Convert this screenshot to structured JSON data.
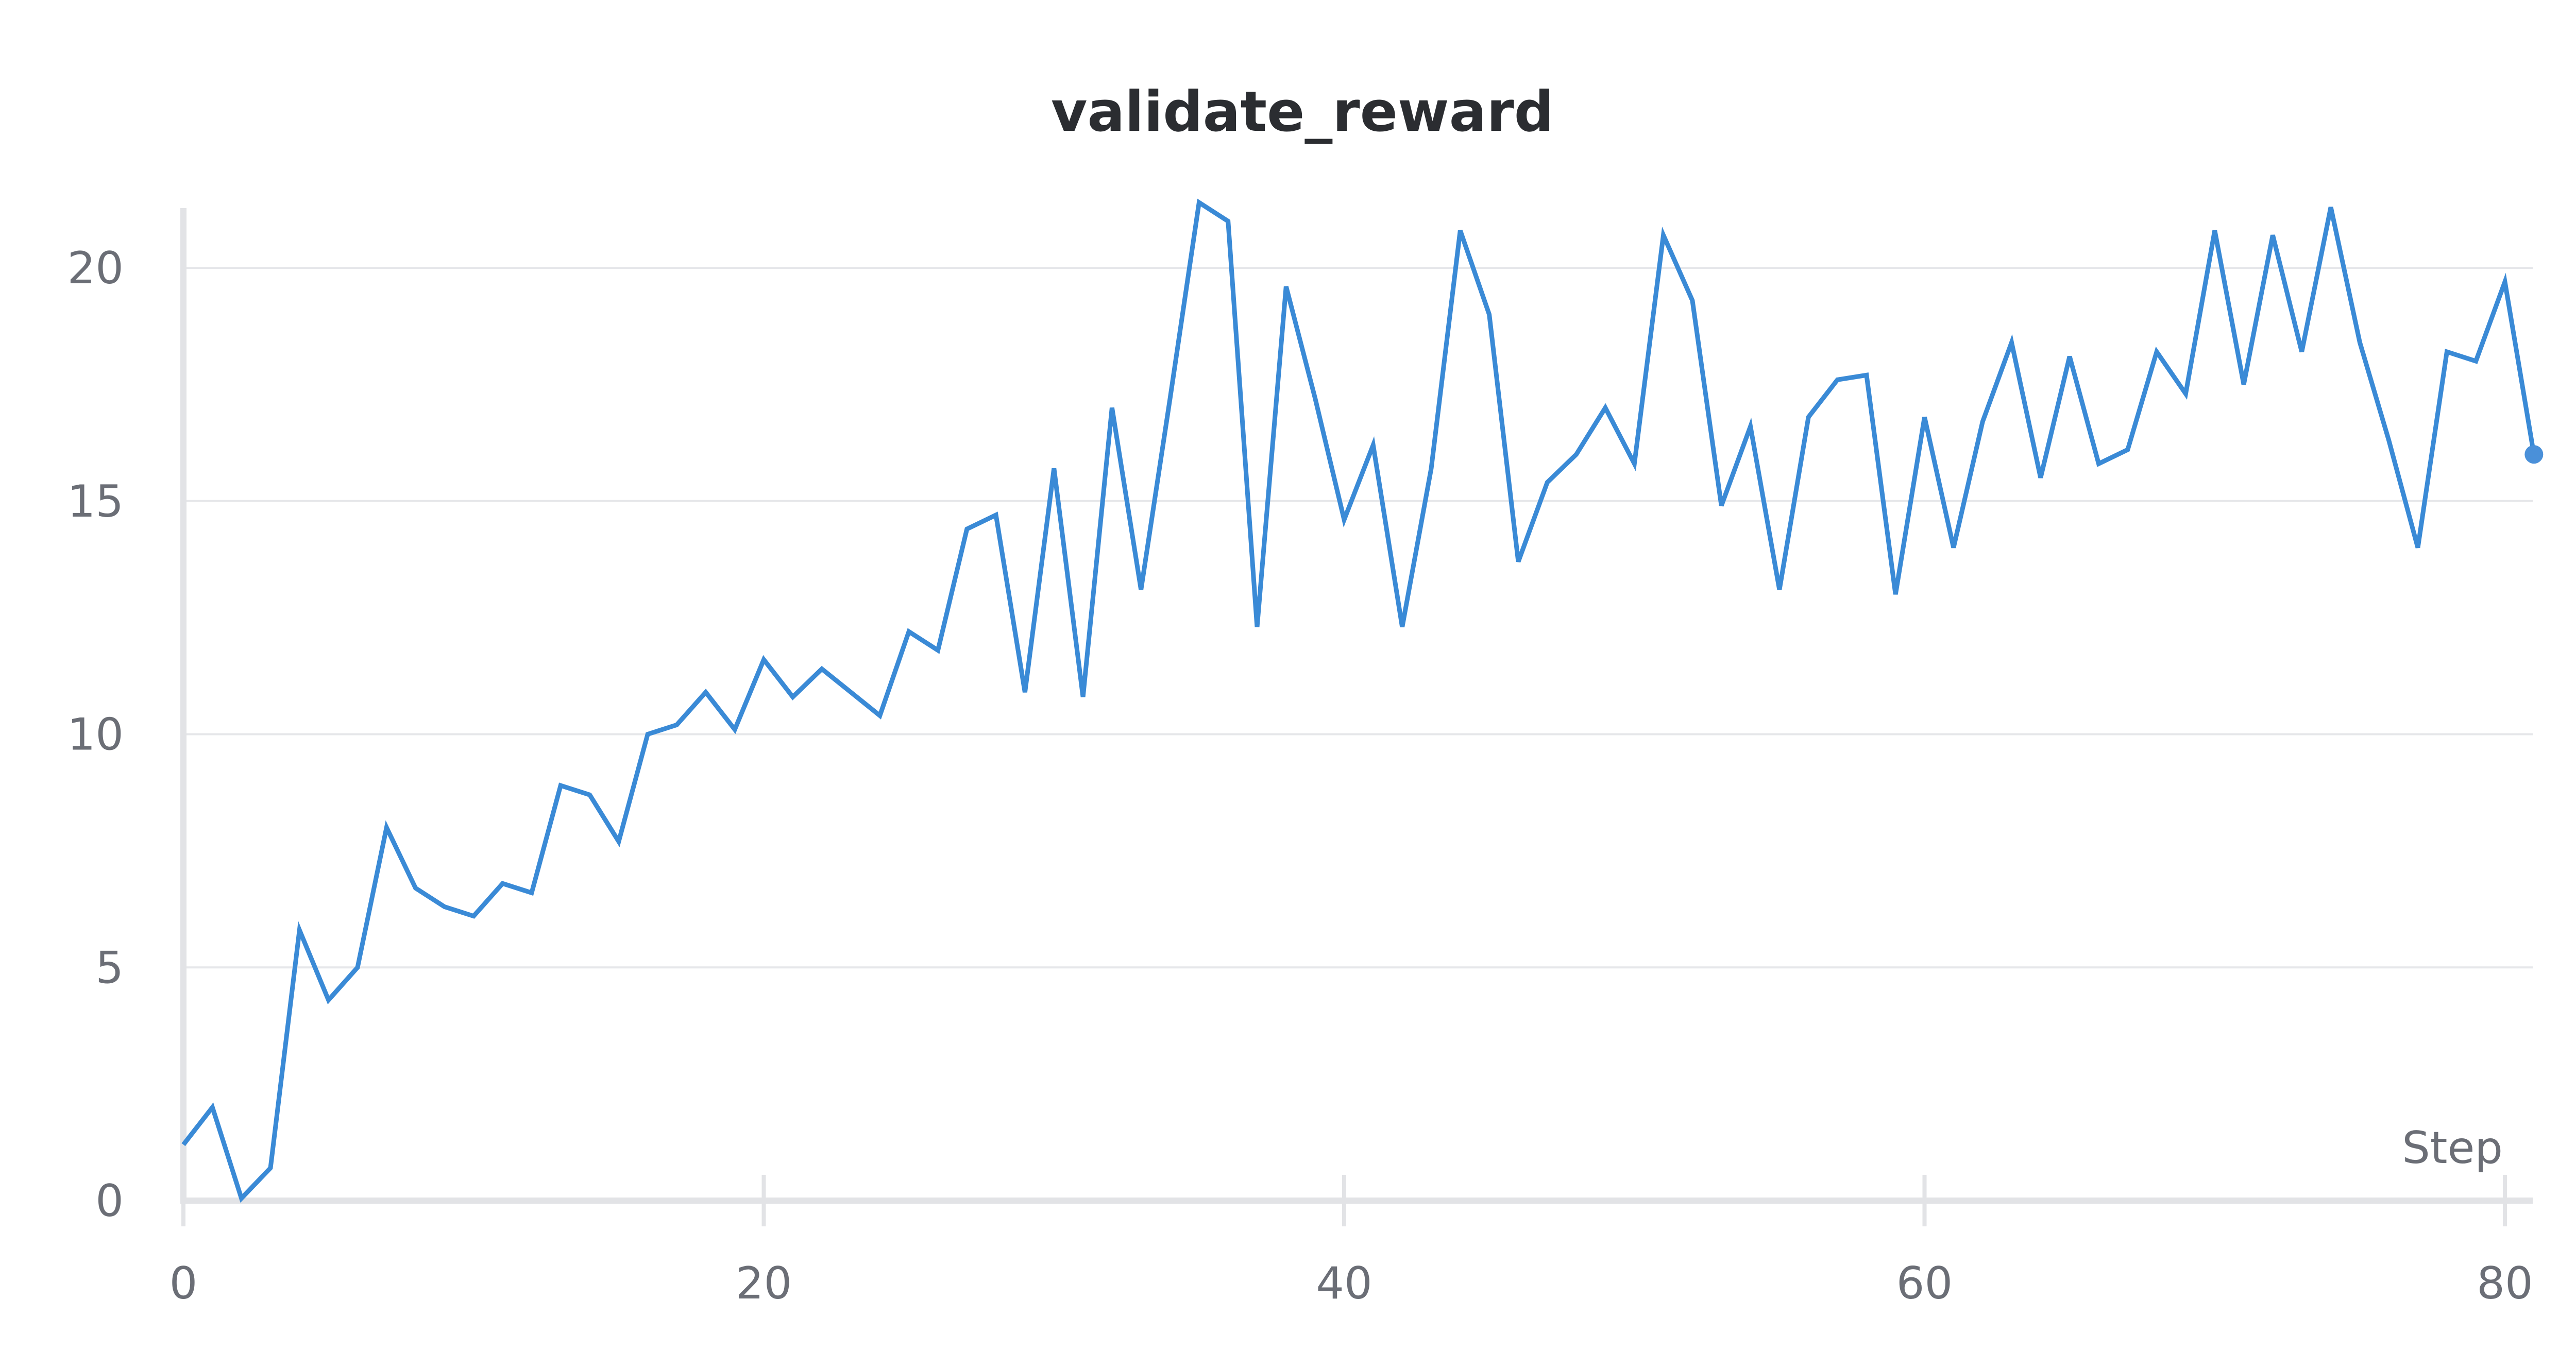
{
  "chart_data": {
    "type": "line",
    "title": "validate_reward",
    "xlabel": "Step",
    "ylabel": "",
    "xlim": [
      0,
      81
    ],
    "ylim": [
      0,
      21.5
    ],
    "x_ticks": [
      0,
      20,
      40,
      60,
      80
    ],
    "y_ticks": [
      0,
      5,
      10,
      15,
      20
    ],
    "grid": true,
    "color": "#3a8ad6",
    "series": [
      {
        "name": "",
        "x": [
          0,
          1,
          2,
          3,
          4,
          5,
          6,
          7,
          8,
          9,
          10,
          11,
          12,
          13,
          14,
          15,
          16,
          17,
          18,
          19,
          20,
          21,
          22,
          23,
          24,
          25,
          26,
          27,
          28,
          29,
          30,
          31,
          32,
          33,
          34,
          35,
          36,
          37,
          38,
          39,
          40,
          41,
          42,
          43,
          44,
          45,
          46,
          47,
          48,
          49,
          50,
          51,
          52,
          53,
          54,
          55,
          56,
          57,
          58,
          59,
          60,
          61,
          62,
          63,
          64,
          65,
          66,
          67,
          68,
          69,
          70,
          71,
          72,
          73,
          74,
          75,
          76,
          77,
          78,
          79,
          80,
          81
        ],
        "values": [
          1.2,
          2.0,
          0.05,
          0.7,
          5.8,
          4.3,
          5.0,
          8.0,
          6.7,
          6.3,
          6.1,
          6.8,
          6.6,
          8.9,
          8.7,
          7.7,
          10.0,
          10.2,
          10.9,
          10.1,
          11.6,
          10.8,
          11.4,
          10.9,
          10.4,
          12.2,
          11.8,
          14.4,
          14.7,
          10.9,
          15.7,
          10.8,
          17.0,
          13.1,
          17.2,
          21.4,
          21.0,
          12.3,
          19.6,
          17.2,
          14.6,
          16.2,
          12.3,
          15.7,
          20.8,
          19.0,
          13.7,
          15.4,
          16.0,
          17.0,
          15.8,
          20.7,
          19.3,
          14.9,
          16.6,
          13.1,
          16.8,
          17.6,
          17.7,
          13.0,
          16.8,
          14.0,
          16.7,
          18.4,
          15.5,
          18.1,
          15.8,
          16.1,
          18.2,
          17.3,
          20.8,
          17.5,
          20.7,
          18.2,
          21.3,
          18.4,
          16.3,
          14.0,
          18.2,
          18.0,
          19.7,
          16.0
        ]
      }
    ]
  }
}
